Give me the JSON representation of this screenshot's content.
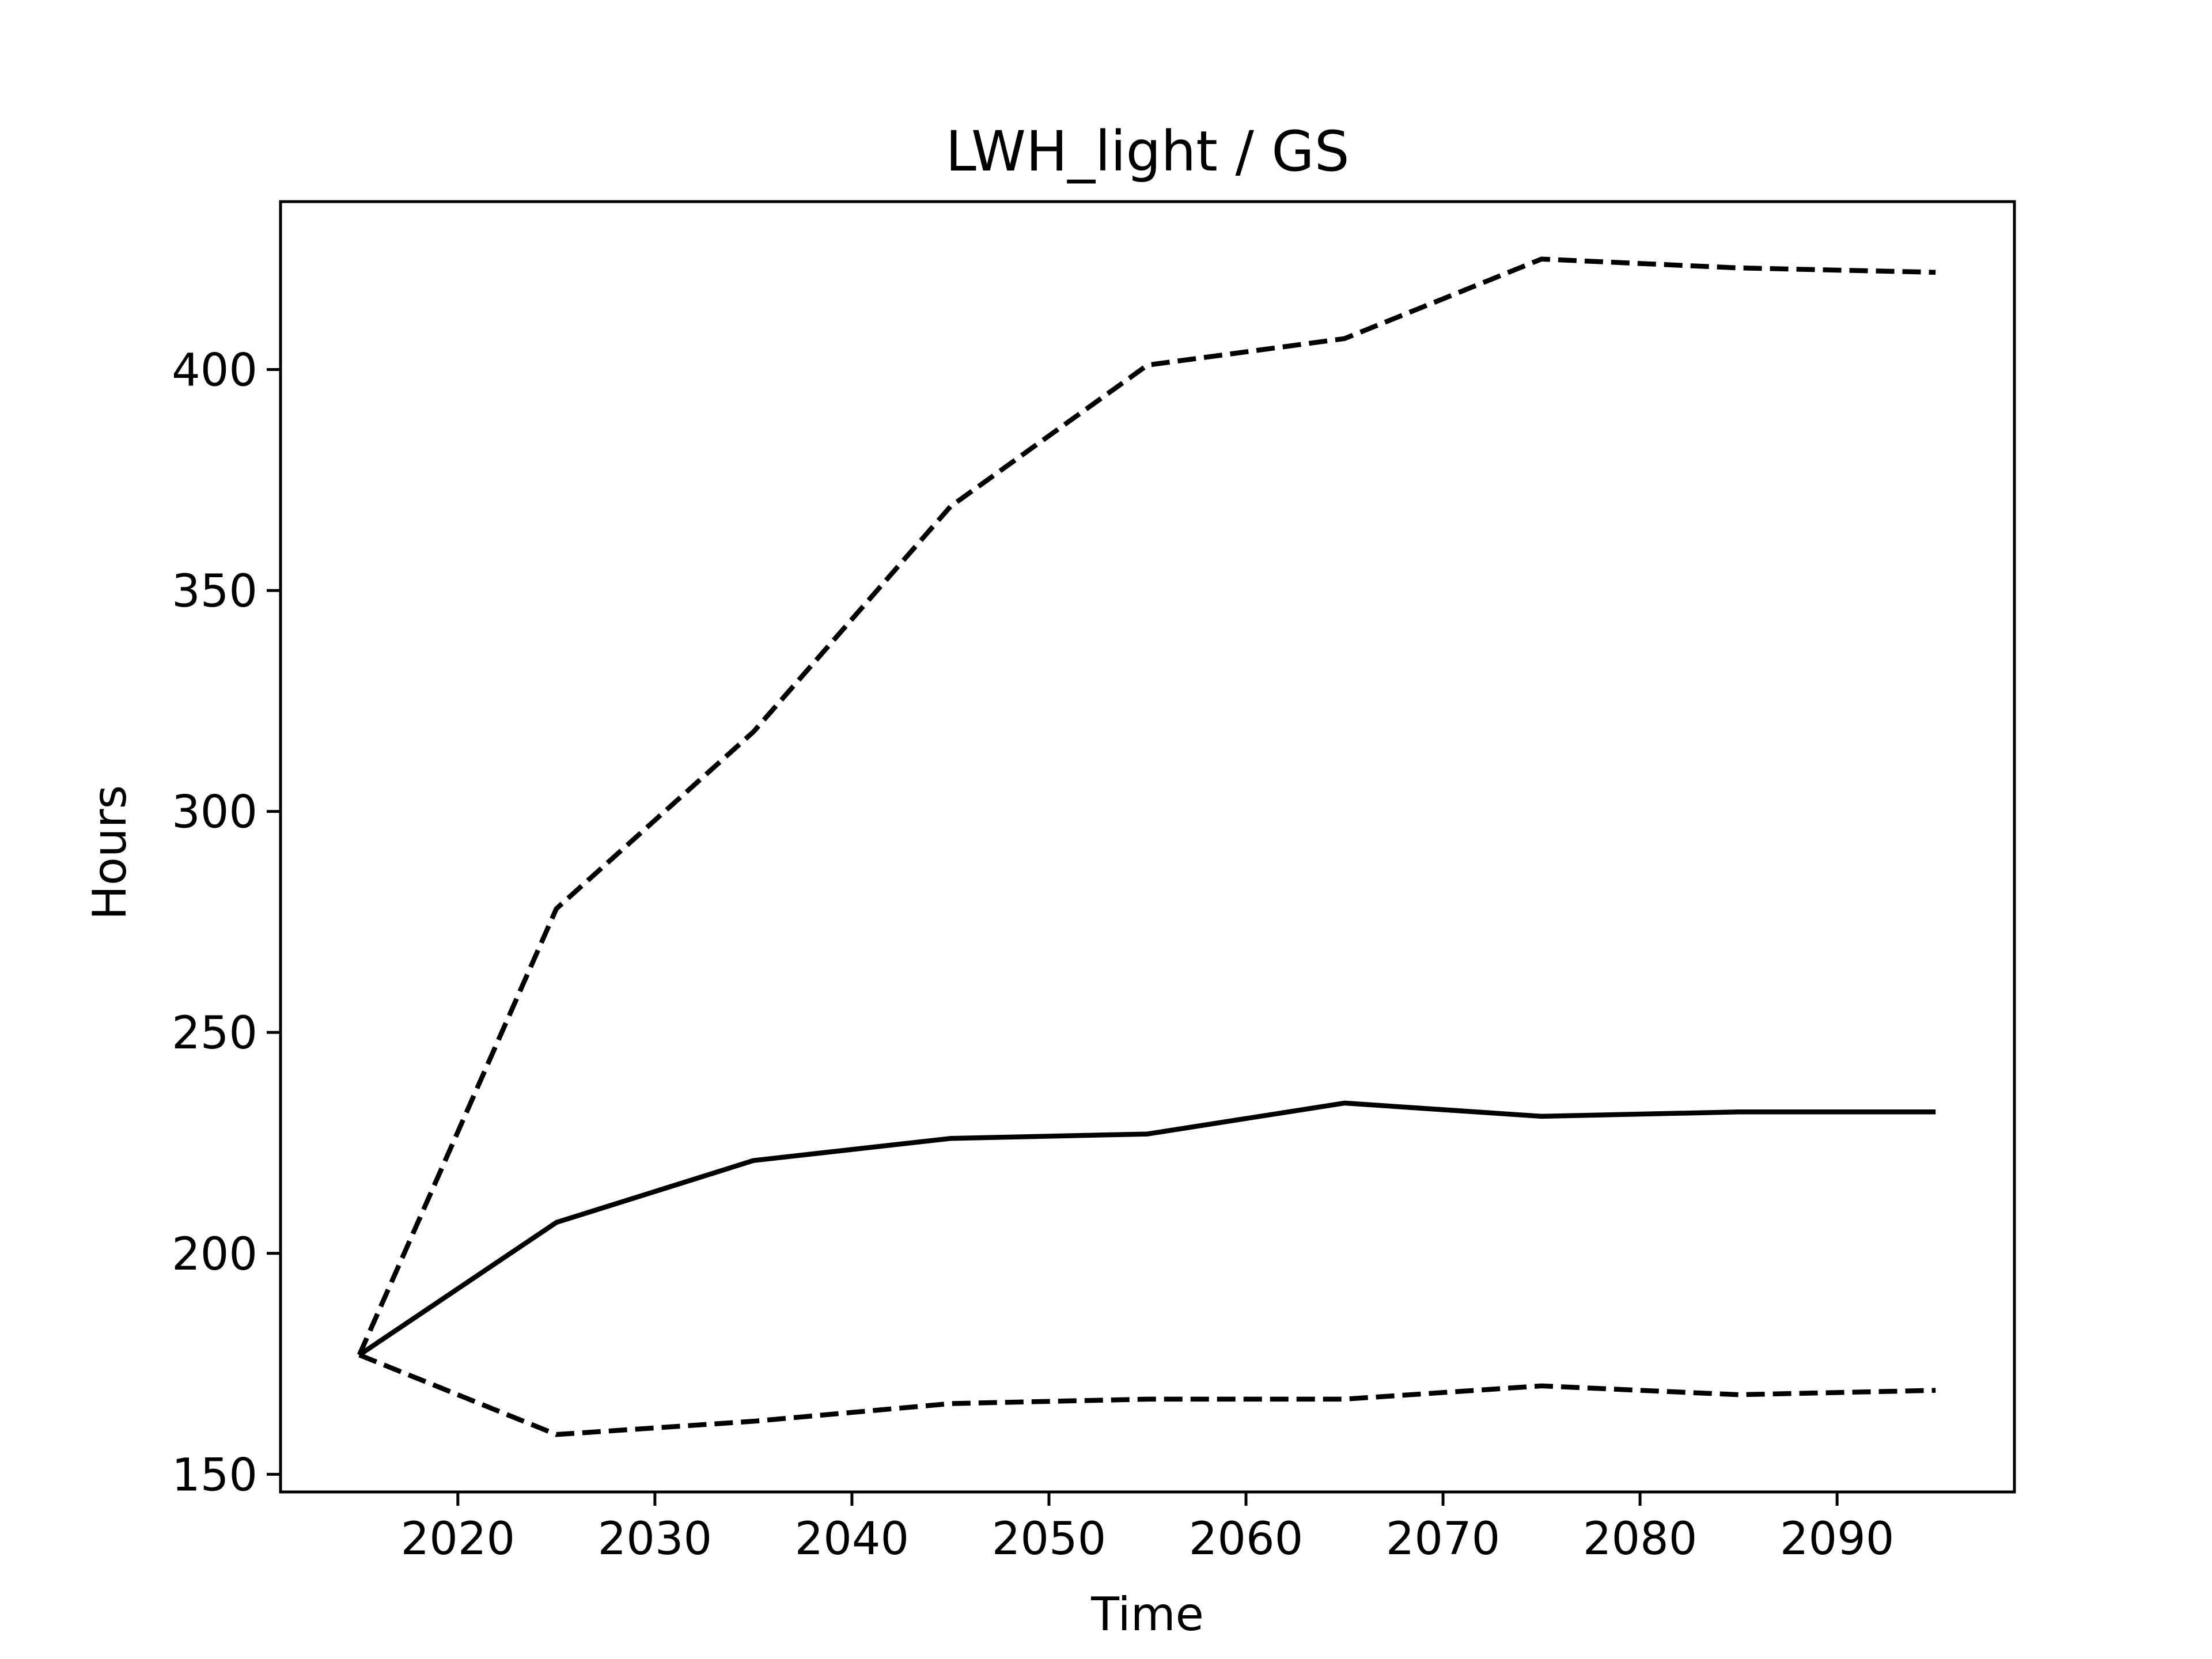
{
  "chart_data": {
    "type": "line",
    "title": "LWH_light / GS",
    "xlabel": "Time",
    "ylabel": "Hours",
    "xlim": [
      2011,
      2099
    ],
    "ylim": [
      146,
      438
    ],
    "xticks": [
      2020,
      2030,
      2040,
      2050,
      2060,
      2070,
      2080,
      2090
    ],
    "yticks": [
      150,
      200,
      250,
      300,
      350,
      400
    ],
    "grid": false,
    "x": [
      2015,
      2025,
      2035,
      2045,
      2055,
      2065,
      2075,
      2085,
      2095
    ],
    "series": [
      {
        "style": "dashed",
        "color": "#000000",
        "values": [
          177,
          278,
          318,
          369,
          401,
          407,
          425,
          423,
          422
        ]
      },
      {
        "style": "solid",
        "color": "#000000",
        "values": [
          177,
          207,
          221,
          226,
          227,
          234,
          231,
          232,
          232
        ]
      },
      {
        "style": "dashed",
        "color": "#000000",
        "values": [
          177,
          159,
          162,
          166,
          167,
          167,
          170,
          168,
          169
        ]
      }
    ]
  }
}
